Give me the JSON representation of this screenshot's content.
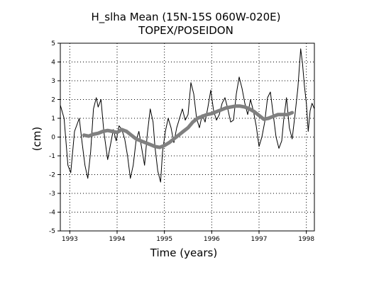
{
  "chart_data": {
    "type": "line",
    "title": "H_slha Mean (15N-15S 060W-020E)",
    "subtitle": "TOPEX/POSEIDON",
    "xlabel": "Time (years)",
    "ylabel": "(cm)",
    "xlim": [
      1992.8,
      1998.17
    ],
    "ylim": [
      -5,
      5
    ],
    "x_ticks": [
      1993,
      1994,
      1995,
      1996,
      1997,
      1998
    ],
    "y_ticks": [
      -5,
      -4,
      -3,
      -2,
      -1,
      0,
      1,
      2,
      3,
      4,
      5
    ],
    "grid": true,
    "colors": {
      "raw": "#000000",
      "smoothed": "#808080"
    },
    "series": [
      {
        "style": "thin-black",
        "x": [
          1992.8,
          1992.88,
          1992.96,
          1993.02,
          1993.1,
          1993.2,
          1993.26,
          1993.32,
          1993.38,
          1993.44,
          1993.5,
          1993.56,
          1993.6,
          1993.66,
          1993.72,
          1993.8,
          1993.86,
          1993.92,
          1993.98,
          1994.04,
          1994.1,
          1994.16,
          1994.22,
          1994.28,
          1994.34,
          1994.4,
          1994.46,
          1994.52,
          1994.58,
          1994.64,
          1994.7,
          1994.76,
          1994.8,
          1994.86,
          1994.92,
          1994.96,
          1995.02,
          1995.08,
          1995.14,
          1995.2,
          1995.26,
          1995.32,
          1995.38,
          1995.44,
          1995.5,
          1995.56,
          1995.62,
          1995.68,
          1995.74,
          1995.8,
          1995.86,
          1995.92,
          1995.98,
          1996.04,
          1996.1,
          1996.16,
          1996.22,
          1996.28,
          1996.34,
          1996.4,
          1996.46,
          1996.52,
          1996.58,
          1996.64,
          1996.7,
          1996.76,
          1996.82,
          1996.88,
          1996.94,
          1997.0,
          1997.06,
          1997.12,
          1997.18,
          1997.24,
          1997.3,
          1997.36,
          1997.42,
          1997.48,
          1997.52,
          1997.58,
          1997.64,
          1997.7,
          1997.76,
          1997.82,
          1997.88,
          1997.92,
          1997.96,
          1998.0,
          1998.04,
          1998.08,
          1998.12,
          1998.17
        ],
        "y": [
          1.7,
          1.0,
          -1.5,
          -1.9,
          0.3,
          1.0,
          -0.3,
          -1.5,
          -2.2,
          -0.8,
          1.5,
          2.1,
          1.6,
          2.0,
          0.3,
          -1.2,
          -0.4,
          0.4,
          -0.2,
          0.6,
          0.4,
          -0.1,
          -1.0,
          -2.2,
          -1.5,
          -0.2,
          0.3,
          -0.6,
          -1.5,
          0.2,
          1.5,
          0.8,
          -0.5,
          -1.8,
          -2.4,
          -0.8,
          0.3,
          1.0,
          0.5,
          -0.3,
          0.5,
          1.0,
          1.5,
          0.9,
          1.2,
          2.9,
          2.3,
          1.0,
          0.5,
          1.2,
          0.8,
          1.6,
          2.5,
          1.4,
          0.9,
          1.2,
          1.8,
          2.1,
          1.5,
          0.8,
          0.9,
          2.3,
          3.2,
          2.6,
          1.8,
          1.2,
          2.0,
          1.4,
          0.6,
          -0.5,
          0.0,
          0.8,
          2.1,
          2.4,
          1.2,
          0.0,
          -0.6,
          -0.2,
          0.9,
          2.1,
          0.5,
          -0.1,
          1.2,
          2.6,
          4.7,
          3.9,
          2.7,
          1.8,
          0.3,
          1.4,
          1.8,
          1.5
        ]
      },
      {
        "style": "thick-gray",
        "x": [
          1993.3,
          1993.4,
          1993.5,
          1993.6,
          1993.7,
          1993.8,
          1993.9,
          1994.0,
          1994.1,
          1994.2,
          1994.3,
          1994.4,
          1994.5,
          1994.6,
          1994.7,
          1994.8,
          1994.9,
          1995.0,
          1995.1,
          1995.2,
          1995.3,
          1995.4,
          1995.5,
          1995.6,
          1995.7,
          1995.8,
          1995.9,
          1996.0,
          1996.1,
          1996.2,
          1996.3,
          1996.4,
          1996.5,
          1996.6,
          1996.7,
          1996.8,
          1996.9,
          1997.0,
          1997.1,
          1997.2,
          1997.3,
          1997.4,
          1997.5,
          1997.6,
          1997.7
        ],
        "y": [
          0.1,
          0.05,
          0.15,
          0.2,
          0.3,
          0.35,
          0.3,
          0.25,
          0.4,
          0.3,
          0.1,
          -0.1,
          -0.2,
          -0.3,
          -0.4,
          -0.5,
          -0.55,
          -0.45,
          -0.3,
          -0.1,
          0.1,
          0.3,
          0.5,
          0.8,
          1.0,
          1.1,
          1.2,
          1.25,
          1.35,
          1.45,
          1.55,
          1.6,
          1.65,
          1.65,
          1.6,
          1.5,
          1.35,
          1.15,
          0.95,
          1.0,
          1.1,
          1.2,
          1.2,
          1.2,
          1.3
        ]
      }
    ]
  }
}
